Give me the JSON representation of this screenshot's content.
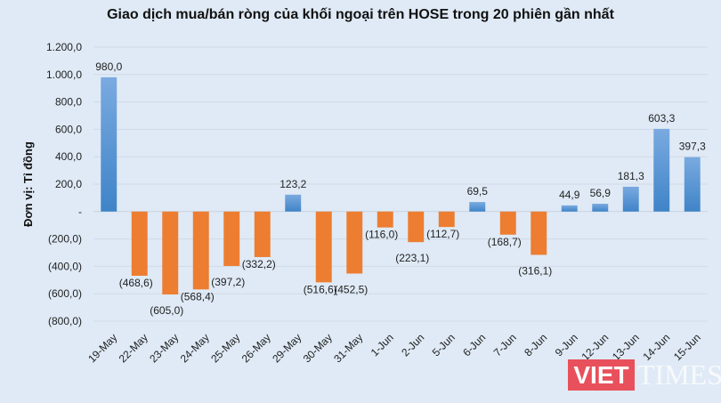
{
  "chart_data": {
    "type": "bar",
    "title": "Giao dịch mua/bán ròng của khối ngoại trên HOSE trong 20 phiên gần nhất",
    "ylabel": "Đơn vị: Tỉ đồng",
    "xlabel": "",
    "categories": [
      "19-May",
      "22-May",
      "23-May",
      "24-May",
      "25-May",
      "26-May",
      "29-May",
      "30-May",
      "31-May",
      "1-Jun",
      "2-Jun",
      "5-Jun",
      "6-Jun",
      "7-Jun",
      "8-Jun",
      "9-Jun",
      "12-Jun",
      "13-Jun",
      "14-Jun",
      "15-Jun"
    ],
    "values": [
      980.0,
      -468.6,
      -605.0,
      -568.4,
      -397.2,
      -332.2,
      123.2,
      -516.6,
      -452.5,
      -116.0,
      -223.1,
      -112.7,
      69.5,
      -168.7,
      -316.1,
      44.9,
      56.9,
      181.3,
      603.3,
      397.3
    ],
    "data_labels": [
      "980,0",
      "(468,6)",
      "(605,0)",
      "(568,4)",
      "(397,2)",
      "(332,2)",
      "123,2",
      "(516,6)",
      "(452,5)",
      "(116,0)",
      "(223,1)",
      "(112,7)",
      "69,5",
      "(168,7)",
      "(316,1)",
      "44,9",
      "56,9",
      "181,3",
      "603,3",
      "397,3"
    ],
    "ylim": [
      -800,
      1200
    ],
    "yticks": [
      1200,
      1000,
      800,
      600,
      400,
      200,
      0,
      -200,
      -400,
      -600,
      -800
    ],
    "ytick_labels": [
      "1.200,0",
      "1.000,0",
      "800,0",
      "600,0",
      "400,0",
      "200,0",
      "-",
      "(200,0)",
      "(400,0)",
      "(600,0)",
      "(800,0)"
    ],
    "grid": true,
    "colors": {
      "positive": "#4a8fd4",
      "negative": "#ed7d31"
    }
  },
  "watermark": {
    "logo": "VIETTIMES",
    "logo_part1": "VIET",
    "logo_part2": "TIMES"
  }
}
